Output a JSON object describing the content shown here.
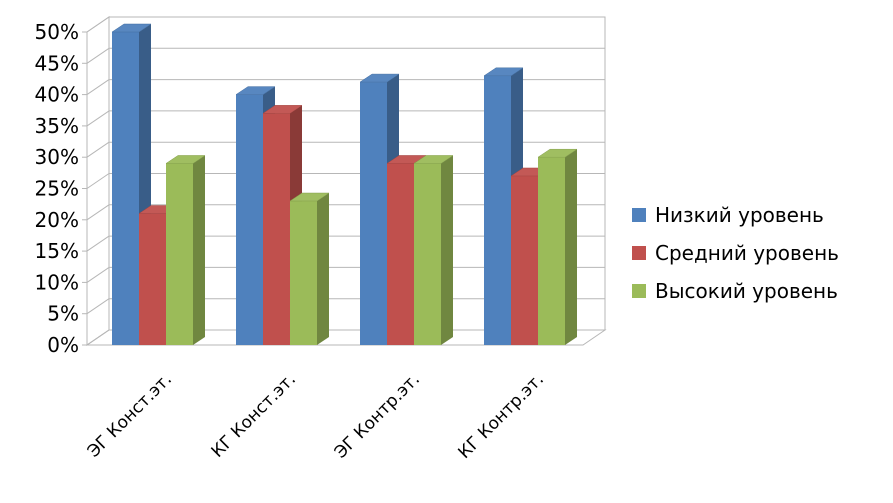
{
  "chart_data": {
    "type": "bar",
    "title": "",
    "xlabel": "",
    "ylabel": "",
    "ylim": [
      0,
      50
    ],
    "y_ticks": [
      "0%",
      "5%",
      "10%",
      "15%",
      "20%",
      "25%",
      "30%",
      "35%",
      "40%",
      "45%",
      "50%"
    ],
    "y_unit": "%",
    "grid": true,
    "style": "3d-clustered-column",
    "legend_position": "right",
    "categories": [
      "ЭГ Конст.эт.",
      "КГ Конст.эт.",
      "ЭГ Контр.эт.",
      "КГ Контр.эт."
    ],
    "series": [
      {
        "name": "Низкий уровень",
        "color": "#4f81bd",
        "values": [
          50,
          40,
          42,
          43
        ]
      },
      {
        "name": "Средний уровень",
        "color": "#c0504d",
        "values": [
          21,
          37,
          29,
          27
        ]
      },
      {
        "name": "Высокий уровень",
        "color": "#9bbb59",
        "values": [
          29,
          23,
          29,
          30
        ]
      }
    ]
  }
}
